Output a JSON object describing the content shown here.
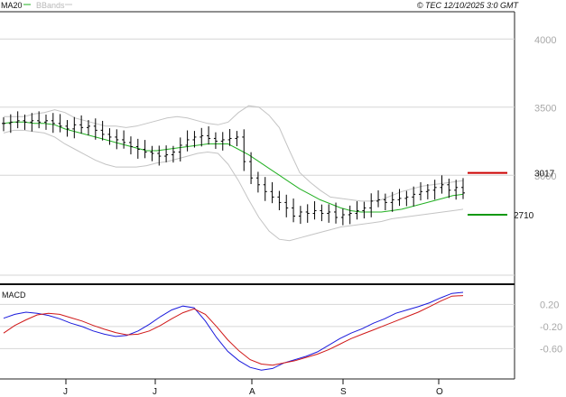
{
  "header": {
    "legend_ma": "MA20",
    "legend_bb": "BBands",
    "copyright": "© TEC 12/10/2025 3:0 GMT"
  },
  "colors": {
    "ma": "#22b022",
    "bands": "#c4c4c4",
    "bars": "#000000",
    "resistance": "#cc0000",
    "support": "#119911",
    "macd": "#1a1adc",
    "signal": "#d01818",
    "grid": "#d6d6d6",
    "axis_text": "#a8a8a8"
  },
  "macd_panel": {
    "title": "MACD"
  },
  "chart_data": [
    {
      "type": "ohlc",
      "months": [
        "J",
        "J",
        "A",
        "S",
        "O"
      ],
      "ylim": [
        22,
        42
      ],
      "yticks": [
        {
          "v": 40,
          "label": "4000"
        },
        {
          "v": 35,
          "label": "3500"
        },
        {
          "v": 30,
          "label": "3000"
        }
      ],
      "resistance": {
        "value": 30.17,
        "label": "3017"
      },
      "support": {
        "value": 27.1,
        "label": "2710"
      },
      "close": [
        33.8,
        33.9,
        34.0,
        33.9,
        34.0,
        33.9,
        34.0,
        33.8,
        33.6,
        33.4,
        33.7,
        33.5,
        33.6,
        33.3,
        33.0,
        32.8,
        32.6,
        32.4,
        32.1,
        31.9,
        31.7,
        31.6,
        31.4,
        31.5,
        31.7,
        32.2,
        32.6,
        32.8,
        32.9,
        32.7,
        32.5,
        32.6,
        32.7,
        32.8,
        31.0,
        29.8,
        29.3,
        28.8,
        28.4,
        28.0,
        27.6,
        27.0,
        27.3,
        27.2,
        27.4,
        27.2,
        27.3,
        26.9,
        27.1,
        27.2,
        27.4,
        27.6,
        28.1,
        28.2,
        28.0,
        28.2,
        28.3,
        28.4,
        28.6,
        28.8,
        28.9,
        29.1,
        29.3,
        28.9,
        29.1,
        28.7
      ],
      "series": [
        {
          "name": "MA20",
          "values": [
            33.8,
            33.9,
            33.9,
            33.8,
            33.8,
            33.7,
            33.4,
            33.2,
            33.0,
            32.8,
            32.6,
            32.4,
            32.2,
            32.0,
            31.8,
            31.8,
            31.9,
            32.0,
            32.1,
            32.2,
            32.3,
            32.3,
            32.3,
            31.9,
            31.5,
            31.0,
            30.5,
            30.0,
            29.5,
            29.0,
            28.6,
            28.2,
            27.9,
            27.6,
            27.4,
            27.3,
            27.3,
            27.3,
            27.4,
            27.5,
            27.7,
            27.9,
            28.1,
            28.3,
            28.5,
            28.6
          ]
        },
        {
          "name": "BBands upper",
          "values": [
            34.3,
            34.3,
            34.3,
            34.5,
            34.6,
            34.8,
            34.6,
            34.2,
            34.0,
            33.8,
            33.6,
            33.6,
            33.5,
            33.6,
            33.8,
            34.0,
            34.2,
            34.3,
            34.2,
            34.0,
            33.8,
            33.7,
            33.9,
            34.6,
            35.1,
            35.0,
            34.4,
            33.5,
            31.8,
            30.2,
            29.5,
            28.9,
            28.4,
            28.3,
            28.2,
            28.1,
            28.1,
            28.2,
            28.5,
            28.8,
            29.0,
            29.2,
            29.3,
            29.4,
            29.5,
            29.6
          ]
        },
        {
          "name": "BBands lower",
          "values": [
            33.1,
            33.3,
            33.3,
            33.2,
            33.1,
            32.8,
            32.3,
            31.9,
            31.5,
            31.1,
            30.8,
            30.6,
            30.6,
            30.6,
            30.7,
            30.9,
            31.0,
            31.2,
            31.4,
            31.6,
            31.7,
            31.6,
            30.8,
            29.6,
            28.2,
            26.9,
            25.9,
            25.3,
            25.2,
            25.4,
            25.6,
            25.8,
            26.0,
            26.2,
            26.3,
            26.4,
            26.5,
            26.6,
            26.8,
            26.9,
            27.0,
            27.1,
            27.2,
            27.3,
            27.4,
            27.5
          ]
        }
      ]
    },
    {
      "type": "line",
      "title": "MACD",
      "ylim": [
        -1.15,
        0.55
      ],
      "yticks": [
        {
          "v": 0.2,
          "label": "0.20"
        },
        {
          "v": -0.2,
          "label": "-0.20"
        },
        {
          "v": -0.6,
          "label": "-0.60"
        }
      ],
      "series": [
        {
          "name": "MACD",
          "values": [
            -0.05,
            0.02,
            0.06,
            0.04,
            0.0,
            -0.06,
            -0.14,
            -0.2,
            -0.28,
            -0.34,
            -0.38,
            -0.36,
            -0.28,
            -0.16,
            -0.02,
            0.1,
            0.17,
            0.14,
            -0.1,
            -0.4,
            -0.65,
            -0.82,
            -0.94,
            -0.99,
            -0.96,
            -0.86,
            -0.8,
            -0.74,
            -0.66,
            -0.54,
            -0.42,
            -0.32,
            -0.24,
            -0.14,
            -0.06,
            0.04,
            0.1,
            0.16,
            0.23,
            0.32,
            0.4,
            0.42
          ]
        },
        {
          "name": "Signal",
          "values": [
            -0.32,
            -0.18,
            -0.08,
            0.01,
            0.04,
            0.02,
            -0.04,
            -0.1,
            -0.18,
            -0.25,
            -0.31,
            -0.35,
            -0.34,
            -0.28,
            -0.18,
            -0.06,
            0.05,
            0.12,
            0.02,
            -0.2,
            -0.44,
            -0.64,
            -0.8,
            -0.88,
            -0.9,
            -0.86,
            -0.82,
            -0.76,
            -0.7,
            -0.62,
            -0.52,
            -0.42,
            -0.34,
            -0.26,
            -0.18,
            -0.1,
            -0.02,
            0.06,
            0.16,
            0.26,
            0.35,
            0.36
          ]
        }
      ]
    }
  ]
}
